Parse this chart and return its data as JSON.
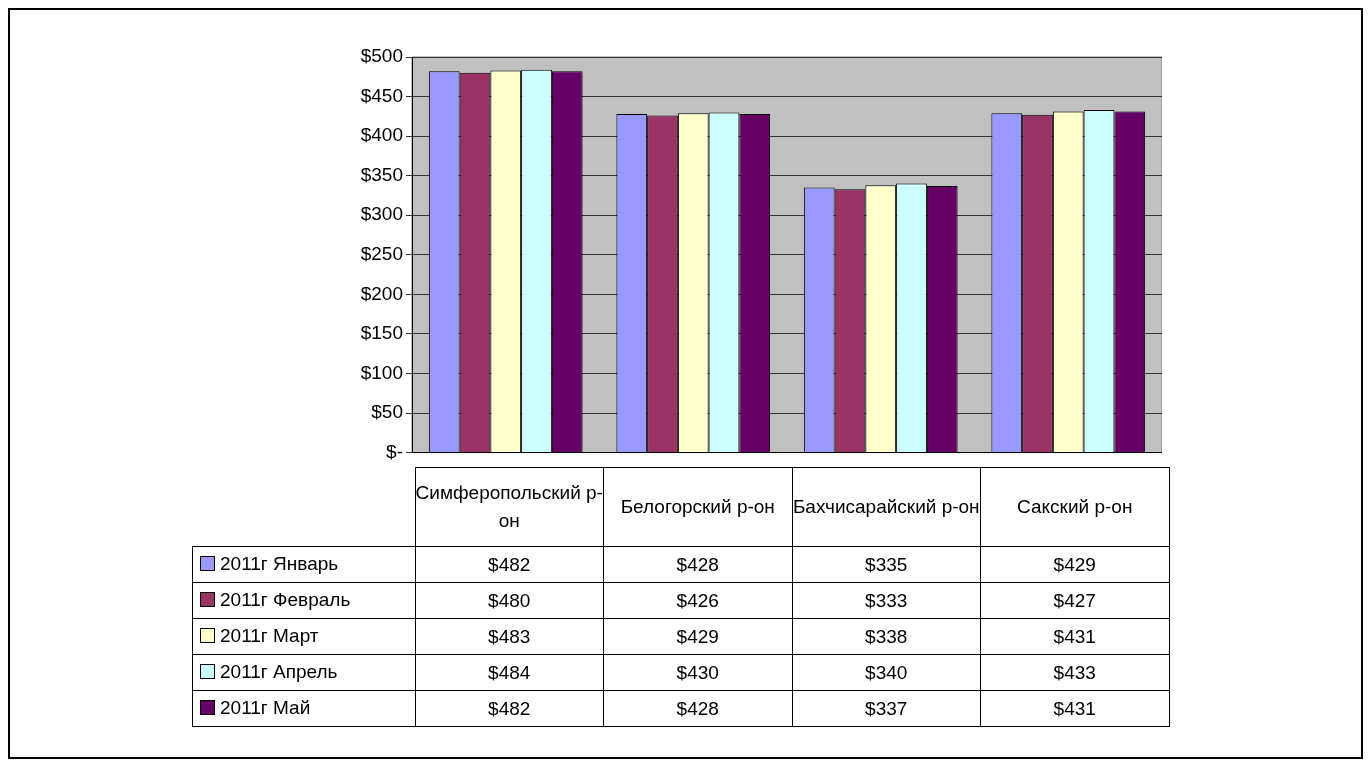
{
  "chart_data": {
    "type": "bar",
    "categories": [
      "Симферопольский р-он",
      "Белогорский р-он",
      "Бахчисарайский р-он",
      "Сакский р-он"
    ],
    "series": [
      {
        "name": "2011г Январь",
        "color": "#9999ff",
        "values": [
          482,
          428,
          335,
          429
        ],
        "value_labels": [
          "$482",
          "$428",
          "$335",
          "$429"
        ]
      },
      {
        "name": "2011г Февраль",
        "color": "#993366",
        "values": [
          480,
          426,
          333,
          427
        ],
        "value_labels": [
          "$480",
          "$426",
          "$333",
          "$427"
        ]
      },
      {
        "name": "2011г Март",
        "color": "#ffffcc",
        "values": [
          483,
          429,
          338,
          431
        ],
        "value_labels": [
          "$483",
          "$429",
          "$338",
          "$431"
        ]
      },
      {
        "name": "2011г Апрель",
        "color": "#ccffff",
        "values": [
          484,
          430,
          340,
          433
        ],
        "value_labels": [
          "$484",
          "$430",
          "$340",
          "$433"
        ]
      },
      {
        "name": "2011г Май",
        "color": "#660066",
        "values": [
          482,
          428,
          337,
          431
        ],
        "value_labels": [
          "$482",
          "$428",
          "$337",
          "$431"
        ]
      }
    ],
    "ylim": [
      0,
      500
    ],
    "yticks": [
      {
        "value": 0,
        "label": "$-"
      },
      {
        "value": 50,
        "label": "$50"
      },
      {
        "value": 100,
        "label": "$100"
      },
      {
        "value": 150,
        "label": "$150"
      },
      {
        "value": 200,
        "label": "$200"
      },
      {
        "value": 250,
        "label": "$250"
      },
      {
        "value": 300,
        "label": "$300"
      },
      {
        "value": 350,
        "label": "$350"
      },
      {
        "value": 400,
        "label": "$400"
      },
      {
        "value": 450,
        "label": "$450"
      },
      {
        "value": 500,
        "label": "$500"
      }
    ],
    "grid": "y",
    "legend": "bottom left"
  }
}
